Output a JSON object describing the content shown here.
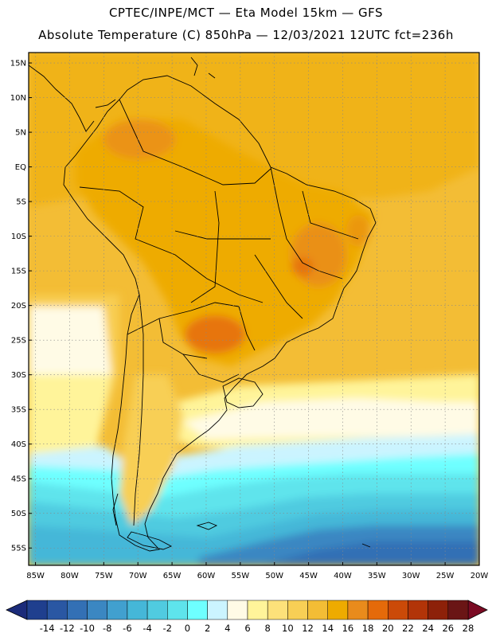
{
  "title": {
    "line1": "CPTEC/INPE/MCT —  Eta Model 15km — GFS",
    "line2": "Absolute Temperature (C) 850hPa — 12/03/2021 12UTC fct=236h"
  },
  "map": {
    "variable": "Absolute Temperature",
    "units": "C",
    "level": "850hPa",
    "lat_labels": [
      "15N",
      "10N",
      "5N",
      "EQ",
      "5S",
      "10S",
      "15S",
      "20S",
      "25S",
      "30S",
      "35S",
      "40S",
      "45S",
      "50S",
      "55S"
    ],
    "lat_values": [
      15,
      10,
      5,
      0,
      -5,
      -10,
      -15,
      -20,
      -25,
      -30,
      -35,
      -40,
      -45,
      -50,
      -55
    ],
    "lon_labels": [
      "85W",
      "80W",
      "75W",
      "70W",
      "65W",
      "60W",
      "55W",
      "50W",
      "45W",
      "40W",
      "35W",
      "30W",
      "25W",
      "20W"
    ],
    "lon_values": [
      -85,
      -80,
      -75,
      -70,
      -65,
      -60,
      -55,
      -50,
      -45,
      -40,
      -35,
      -30,
      -25,
      -20
    ],
    "extent": {
      "lon_min": -86,
      "lon_max": -20,
      "lat_min": -57.5,
      "lat_max": 16.5
    }
  },
  "colorbar": {
    "labels": [
      "-14",
      "-12",
      "-10",
      "-8",
      "-6",
      "-4",
      "-2",
      "0",
      "2",
      "4",
      "6",
      "8",
      "10",
      "12",
      "14",
      "16",
      "18",
      "20",
      "22",
      "24",
      "26",
      "28"
    ],
    "colors": [
      "#1f3f8e",
      "#2a57a3",
      "#3370b5",
      "#3b87c2",
      "#41a0cf",
      "#45b7d8",
      "#50cbe0",
      "#5ee4ec",
      "#6effff",
      "#cbf4ff",
      "#fffbe6",
      "#fff49a",
      "#fde17a",
      "#f8cf55",
      "#f3bd35",
      "#eeab00",
      "#e98b1c",
      "#e56a0a",
      "#cb4a08",
      "#b23408",
      "#8d2109",
      "#6a1515"
    ],
    "under_color": "#1b2b7a",
    "over_color": "#7a0a23"
  }
}
